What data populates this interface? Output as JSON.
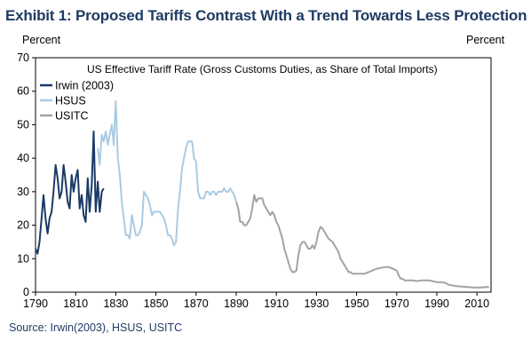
{
  "header": {
    "title": "Exhibit 1: Proposed Tariffs Contrast With a Trend Towards Less Protection",
    "unit_left": "Percent",
    "unit_right": "Percent"
  },
  "footer": {
    "source": "Source: Irwin(2003), HSUS, USITC"
  },
  "chart_data": {
    "type": "line",
    "subtitle": "US Effective  Tariff Rate (Gross Customs Duties, as Share of Total Imports)",
    "xlim": [
      1790,
      2017
    ],
    "ylim": [
      0,
      70
    ],
    "xticks": [
      1790,
      1810,
      1830,
      1850,
      1870,
      1890,
      1910,
      1930,
      1950,
      1970,
      1990,
      2010
    ],
    "yticks": [
      0,
      10,
      20,
      30,
      40,
      50,
      60,
      70
    ],
    "legend_position": "top-left",
    "grid": false,
    "series": [
      {
        "name": "Irwin (2003)",
        "color": "#1a3a66",
        "points": [
          [
            1790,
            13
          ],
          [
            1791,
            11.5
          ],
          [
            1792,
            15
          ],
          [
            1793,
            22
          ],
          [
            1794,
            29
          ],
          [
            1795,
            22
          ],
          [
            1796,
            17.5
          ],
          [
            1797,
            22
          ],
          [
            1798,
            24
          ],
          [
            1799,
            30
          ],
          [
            1800,
            38
          ],
          [
            1801,
            34
          ],
          [
            1802,
            28
          ],
          [
            1803,
            30
          ],
          [
            1804,
            38
          ],
          [
            1805,
            33
          ],
          [
            1806,
            27
          ],
          [
            1807,
            25
          ],
          [
            1808,
            35
          ],
          [
            1809,
            30
          ],
          [
            1810,
            34
          ],
          [
            1811,
            36.5
          ],
          [
            1812,
            25
          ],
          [
            1813,
            29
          ],
          [
            1814,
            23
          ],
          [
            1815,
            21
          ],
          [
            1816,
            34
          ],
          [
            1817,
            24
          ],
          [
            1818,
            32
          ],
          [
            1819,
            48
          ],
          [
            1820,
            24
          ],
          [
            1821,
            33
          ],
          [
            1822,
            24
          ],
          [
            1823,
            30
          ],
          [
            1824,
            31
          ]
        ]
      },
      {
        "name": "HSUS",
        "color": "#a9cbe3",
        "points": [
          [
            1821,
            43
          ],
          [
            1822,
            38
          ],
          [
            1823,
            47
          ],
          [
            1824,
            45
          ],
          [
            1825,
            48
          ],
          [
            1826,
            44
          ],
          [
            1827,
            47
          ],
          [
            1828,
            50
          ],
          [
            1829,
            44
          ],
          [
            1830,
            57
          ],
          [
            1831,
            40
          ],
          [
            1832,
            35
          ],
          [
            1833,
            27
          ],
          [
            1834,
            22
          ],
          [
            1835,
            17
          ],
          [
            1836,
            17
          ],
          [
            1837,
            16
          ],
          [
            1838,
            23
          ],
          [
            1839,
            20
          ],
          [
            1840,
            17
          ],
          [
            1841,
            17
          ],
          [
            1842,
            18
          ],
          [
            1843,
            20
          ],
          [
            1844,
            30
          ],
          [
            1845,
            29
          ],
          [
            1846,
            28
          ],
          [
            1847,
            26
          ],
          [
            1848,
            23
          ],
          [
            1849,
            24
          ],
          [
            1850,
            24
          ],
          [
            1851,
            24
          ],
          [
            1852,
            24
          ],
          [
            1853,
            23
          ],
          [
            1854,
            22
          ],
          [
            1855,
            20
          ],
          [
            1856,
            17
          ],
          [
            1857,
            17
          ],
          [
            1858,
            16
          ],
          [
            1859,
            14
          ],
          [
            1860,
            15
          ],
          [
            1861,
            25
          ],
          [
            1862,
            30
          ],
          [
            1863,
            37
          ],
          [
            1864,
            40
          ],
          [
            1865,
            43
          ],
          [
            1866,
            45
          ],
          [
            1867,
            45
          ],
          [
            1868,
            45
          ],
          [
            1869,
            40
          ],
          [
            1870,
            39
          ],
          [
            1871,
            30
          ],
          [
            1872,
            28
          ],
          [
            1873,
            28
          ],
          [
            1874,
            28
          ],
          [
            1875,
            30
          ],
          [
            1876,
            30
          ],
          [
            1877,
            29
          ],
          [
            1878,
            30
          ],
          [
            1879,
            30
          ],
          [
            1880,
            29
          ],
          [
            1881,
            30
          ],
          [
            1882,
            30
          ],
          [
            1883,
            30
          ],
          [
            1884,
            31
          ],
          [
            1885,
            30
          ],
          [
            1886,
            30
          ],
          [
            1887,
            31
          ],
          [
            1888,
            30
          ],
          [
            1889,
            29
          ],
          [
            1890,
            27
          ]
        ]
      },
      {
        "name": "USITC",
        "color": "#a3a3a3",
        "points": [
          [
            1890,
            27
          ],
          [
            1891,
            25
          ],
          [
            1892,
            21
          ],
          [
            1893,
            21
          ],
          [
            1894,
            20
          ],
          [
            1895,
            20
          ],
          [
            1896,
            21
          ],
          [
            1897,
            22
          ],
          [
            1898,
            25
          ],
          [
            1899,
            29
          ],
          [
            1900,
            27
          ],
          [
            1901,
            28
          ],
          [
            1902,
            28
          ],
          [
            1903,
            28
          ],
          [
            1904,
            26
          ],
          [
            1905,
            25
          ],
          [
            1906,
            24
          ],
          [
            1907,
            23
          ],
          [
            1908,
            24
          ],
          [
            1909,
            23
          ],
          [
            1910,
            21
          ],
          [
            1911,
            20
          ],
          [
            1912,
            18
          ],
          [
            1913,
            16
          ],
          [
            1914,
            13
          ],
          [
            1915,
            11
          ],
          [
            1916,
            9
          ],
          [
            1917,
            7
          ],
          [
            1918,
            6
          ],
          [
            1919,
            6
          ],
          [
            1920,
            6.5
          ],
          [
            1921,
            11
          ],
          [
            1922,
            14
          ],
          [
            1923,
            15
          ],
          [
            1924,
            15
          ],
          [
            1925,
            14
          ],
          [
            1926,
            13
          ],
          [
            1927,
            13
          ],
          [
            1928,
            14
          ],
          [
            1929,
            13
          ],
          [
            1930,
            15
          ],
          [
            1931,
            18
          ],
          [
            1932,
            19.5
          ],
          [
            1933,
            19
          ],
          [
            1934,
            18
          ],
          [
            1935,
            17
          ],
          [
            1936,
            16
          ],
          [
            1937,
            15.5
          ],
          [
            1938,
            15
          ],
          [
            1939,
            14
          ],
          [
            1940,
            13
          ],
          [
            1941,
            12
          ],
          [
            1942,
            10
          ],
          [
            1943,
            9
          ],
          [
            1944,
            8
          ],
          [
            1945,
            7
          ],
          [
            1946,
            6
          ],
          [
            1947,
            6
          ],
          [
            1948,
            5.5
          ],
          [
            1949,
            5.5
          ],
          [
            1950,
            5.5
          ],
          [
            1952,
            5.5
          ],
          [
            1954,
            5.5
          ],
          [
            1956,
            6
          ],
          [
            1958,
            6.5
          ],
          [
            1960,
            7
          ],
          [
            1962,
            7.2
          ],
          [
            1964,
            7.5
          ],
          [
            1966,
            7.5
          ],
          [
            1968,
            7
          ],
          [
            1970,
            6.5
          ],
          [
            1971,
            5
          ],
          [
            1972,
            4
          ],
          [
            1973,
            4
          ],
          [
            1974,
            3.5
          ],
          [
            1976,
            3.5
          ],
          [
            1978,
            3.5
          ],
          [
            1980,
            3.3
          ],
          [
            1982,
            3.5
          ],
          [
            1984,
            3.5
          ],
          [
            1986,
            3.5
          ],
          [
            1988,
            3.3
          ],
          [
            1990,
            3
          ],
          [
            1992,
            3
          ],
          [
            1994,
            2.8
          ],
          [
            1996,
            2.2
          ],
          [
            1998,
            2
          ],
          [
            2000,
            1.8
          ],
          [
            2002,
            1.7
          ],
          [
            2004,
            1.6
          ],
          [
            2006,
            1.5
          ],
          [
            2008,
            1.4
          ],
          [
            2010,
            1.4
          ],
          [
            2012,
            1.4
          ],
          [
            2014,
            1.5
          ],
          [
            2016,
            1.5
          ]
        ]
      }
    ]
  }
}
